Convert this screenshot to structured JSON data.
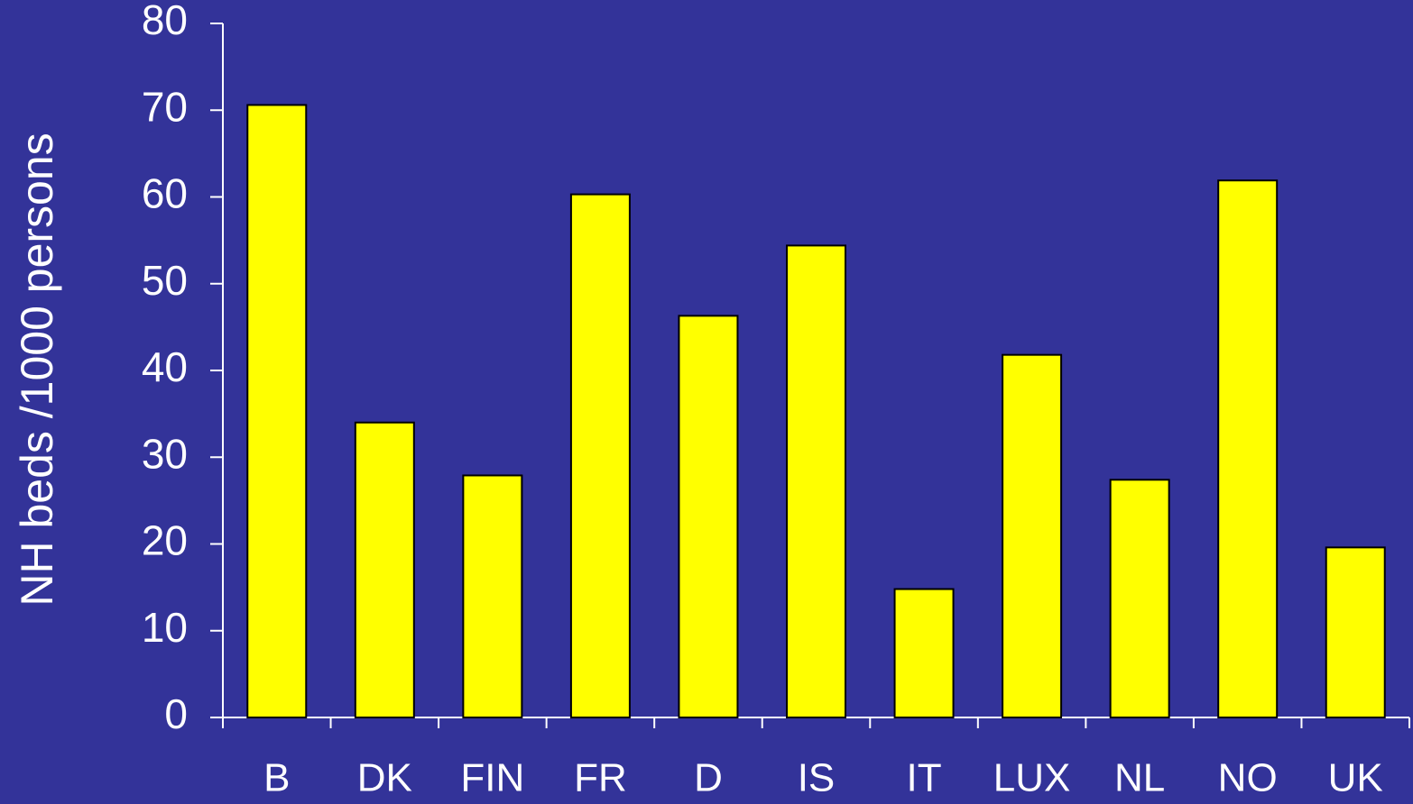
{
  "chart_data": {
    "type": "bar",
    "y_label": "NH beds /1000 persons",
    "categories": [
      "B",
      "DK",
      "FIN",
      "FR",
      "D",
      "IS",
      "IT",
      "LUX",
      "NL",
      "NO",
      "UK"
    ],
    "values": [
      70.6,
      34.0,
      27.9,
      60.3,
      46.3,
      54.4,
      14.8,
      41.8,
      27.4,
      61.9,
      19.6
    ],
    "color": "#ffff00",
    "ylim": [
      0,
      80
    ],
    "yticks": [
      0,
      10,
      20,
      30,
      40,
      50,
      60,
      70,
      80
    ]
  }
}
